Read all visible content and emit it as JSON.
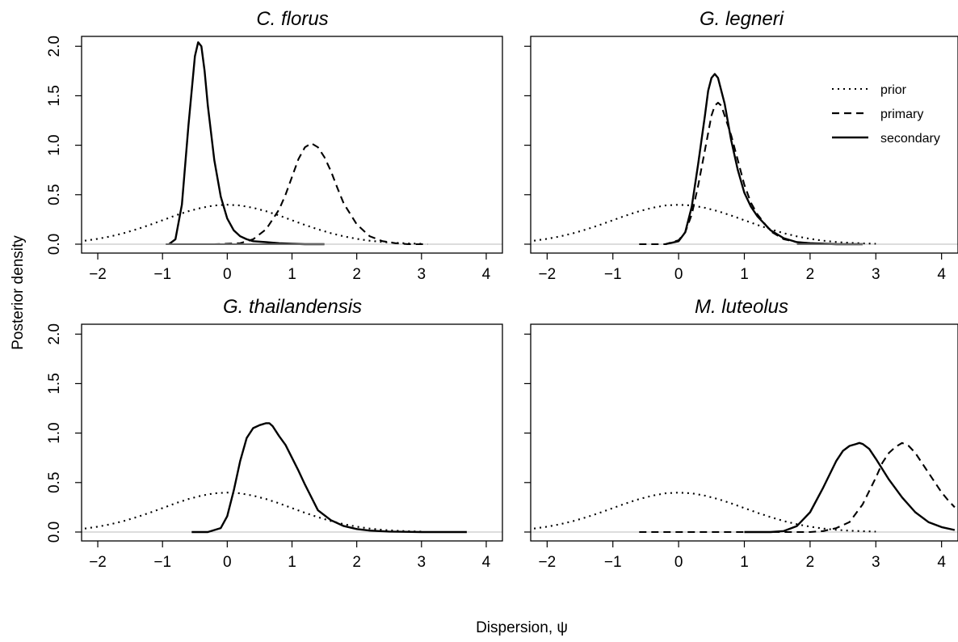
{
  "figure": {
    "xlabel": "Dispersion, ψ",
    "ylabel": "Posterior density"
  },
  "legend": {
    "items": [
      {
        "label": "prior",
        "style": "dotted"
      },
      {
        "label": "primary",
        "style": "dashed"
      },
      {
        "label": "secondary",
        "style": "solid"
      }
    ]
  },
  "chart_data": [
    {
      "type": "line",
      "title": "C. florus",
      "xlim": [
        -2.25,
        4.25
      ],
      "ylim": [
        -0.09,
        2.1
      ],
      "xticks": [
        -2,
        -1,
        0,
        1,
        2,
        3,
        4
      ],
      "xtick_labels": [
        "−2",
        "−1",
        "0",
        "1",
        "2",
        "3",
        "4"
      ],
      "yticks": [
        0.0,
        0.5,
        1.0,
        1.5,
        2.0
      ],
      "ytick_labels": [
        "0.0",
        "0.5",
        "1.0",
        "1.5",
        "2.0"
      ],
      "series": [
        {
          "name": "prior",
          "style": "dotted",
          "color": "#000000",
          "x": [
            -2.2,
            -2.0,
            -1.8,
            -1.6,
            -1.4,
            -1.2,
            -1.0,
            -0.8,
            -0.6,
            -0.4,
            -0.2,
            0.0,
            0.2,
            0.4,
            0.6,
            0.8,
            1.0,
            1.2,
            1.4,
            1.6,
            1.8,
            2.0,
            2.2,
            2.4,
            2.6,
            2.8,
            3.0
          ],
          "y": [
            0.035,
            0.054,
            0.079,
            0.111,
            0.15,
            0.194,
            0.242,
            0.29,
            0.333,
            0.368,
            0.391,
            0.399,
            0.391,
            0.368,
            0.333,
            0.29,
            0.242,
            0.194,
            0.15,
            0.111,
            0.079,
            0.054,
            0.035,
            0.022,
            0.014,
            0.008,
            0.004
          ]
        },
        {
          "name": "primary",
          "style": "dashed",
          "color": "#000000",
          "x": [
            -0.6,
            -0.2,
            0.2,
            0.4,
            0.6,
            0.8,
            0.9,
            1.0,
            1.1,
            1.2,
            1.3,
            1.4,
            1.5,
            1.6,
            1.7,
            1.8,
            2.0,
            2.2,
            2.4,
            2.6,
            2.8,
            3.1
          ],
          "y": [
            0.0,
            0.0,
            0.01,
            0.05,
            0.15,
            0.35,
            0.5,
            0.68,
            0.86,
            0.98,
            1.02,
            0.98,
            0.88,
            0.74,
            0.57,
            0.41,
            0.2,
            0.08,
            0.03,
            0.01,
            0.0,
            0.0
          ]
        },
        {
          "name": "secondary",
          "style": "solid",
          "color": "#000000",
          "x": [
            -0.9,
            -0.8,
            -0.7,
            -0.6,
            -0.5,
            -0.45,
            -0.4,
            -0.35,
            -0.3,
            -0.2,
            -0.1,
            0.0,
            0.1,
            0.2,
            0.3,
            0.4,
            0.6,
            0.8,
            1.0,
            1.2,
            1.5
          ],
          "y": [
            0.0,
            0.05,
            0.4,
            1.2,
            1.9,
            2.04,
            2.0,
            1.75,
            1.4,
            0.85,
            0.48,
            0.26,
            0.14,
            0.08,
            0.05,
            0.03,
            0.02,
            0.01,
            0.005,
            0.0,
            0.0
          ]
        },
        {
          "name": "",
          "style": "solid",
          "color": "#666666",
          "x": [
            -0.95,
            -0.8,
            0.6,
            1.5
          ],
          "y": [
            0.0,
            0.0,
            0.0,
            0.0
          ]
        }
      ]
    },
    {
      "type": "line",
      "title": "G. legneri",
      "xlim": [
        -2.25,
        4.25
      ],
      "ylim": [
        -0.09,
        2.1
      ],
      "xticks": [
        -2,
        -1,
        0,
        1,
        2,
        3,
        4
      ],
      "xtick_labels": [
        "−2",
        "−1",
        "0",
        "1",
        "2",
        "3",
        "4"
      ],
      "yticks": [
        0.0,
        0.5,
        1.0,
        1.5,
        2.0
      ],
      "ytick_labels": [
        "",
        "",
        "",
        "",
        ""
      ],
      "series": [
        {
          "name": "prior",
          "style": "dotted",
          "color": "#000000",
          "x": [
            -2.2,
            -2.0,
            -1.8,
            -1.6,
            -1.4,
            -1.2,
            -1.0,
            -0.8,
            -0.6,
            -0.4,
            -0.2,
            0.0,
            0.2,
            0.4,
            0.6,
            0.8,
            1.0,
            1.2,
            1.4,
            1.6,
            1.8,
            2.0,
            2.2,
            2.4,
            2.6,
            2.8,
            3.0
          ],
          "y": [
            0.035,
            0.054,
            0.079,
            0.111,
            0.15,
            0.194,
            0.242,
            0.29,
            0.333,
            0.368,
            0.391,
            0.399,
            0.391,
            0.368,
            0.333,
            0.29,
            0.242,
            0.194,
            0.15,
            0.111,
            0.079,
            0.054,
            0.035,
            0.022,
            0.014,
            0.008,
            0.004
          ]
        },
        {
          "name": "primary",
          "style": "dashed",
          "color": "#000000",
          "x": [
            -0.6,
            -0.2,
            0.0,
            0.1,
            0.2,
            0.3,
            0.4,
            0.5,
            0.55,
            0.6,
            0.65,
            0.7,
            0.8,
            0.9,
            1.0,
            1.1,
            1.2,
            1.4,
            1.6,
            1.8,
            2.0,
            2.4,
            2.8
          ],
          "y": [
            0.0,
            0.0,
            0.04,
            0.12,
            0.3,
            0.6,
            0.95,
            1.3,
            1.4,
            1.43,
            1.4,
            1.3,
            1.1,
            0.85,
            0.6,
            0.42,
            0.3,
            0.13,
            0.05,
            0.02,
            0.01,
            0.0,
            0.0
          ]
        },
        {
          "name": "secondary",
          "style": "solid",
          "color": "#000000",
          "x": [
            -0.2,
            0.0,
            0.1,
            0.2,
            0.3,
            0.4,
            0.45,
            0.5,
            0.55,
            0.6,
            0.7,
            0.8,
            0.9,
            1.0,
            1.1,
            1.2,
            1.4,
            1.6,
            1.8,
            2.0,
            2.4,
            2.8
          ],
          "y": [
            0.0,
            0.03,
            0.12,
            0.38,
            0.82,
            1.3,
            1.55,
            1.68,
            1.72,
            1.68,
            1.42,
            1.05,
            0.75,
            0.52,
            0.38,
            0.28,
            0.14,
            0.06,
            0.02,
            0.01,
            0.0,
            0.0
          ]
        },
        {
          "name": "",
          "style": "solid",
          "color": "#666666",
          "x": [
            1.8,
            2.8
          ],
          "y": [
            0.0,
            0.0
          ]
        }
      ]
    },
    {
      "type": "line",
      "title": "G. thailandensis",
      "xlim": [
        -2.25,
        4.25
      ],
      "ylim": [
        -0.09,
        2.1
      ],
      "xticks": [
        -2,
        -1,
        0,
        1,
        2,
        3,
        4
      ],
      "xtick_labels": [
        "−2",
        "−1",
        "0",
        "1",
        "2",
        "3",
        "4"
      ],
      "yticks": [
        0.0,
        0.5,
        1.0,
        1.5,
        2.0
      ],
      "ytick_labels": [
        "0.0",
        "0.5",
        "1.0",
        "1.5",
        "2.0"
      ],
      "series": [
        {
          "name": "prior",
          "style": "dotted",
          "color": "#000000",
          "x": [
            -2.2,
            -2.0,
            -1.8,
            -1.6,
            -1.4,
            -1.2,
            -1.0,
            -0.8,
            -0.6,
            -0.4,
            -0.2,
            0.0,
            0.2,
            0.4,
            0.6,
            0.8,
            1.0,
            1.2,
            1.4,
            1.6,
            1.8,
            2.0,
            2.2,
            2.4,
            2.6,
            2.8,
            3.0
          ],
          "y": [
            0.035,
            0.054,
            0.079,
            0.111,
            0.15,
            0.194,
            0.242,
            0.29,
            0.333,
            0.368,
            0.391,
            0.399,
            0.391,
            0.368,
            0.333,
            0.29,
            0.242,
            0.194,
            0.15,
            0.111,
            0.079,
            0.054,
            0.035,
            0.022,
            0.014,
            0.008,
            0.004
          ]
        },
        {
          "name": "secondary",
          "style": "solid",
          "color": "#000000",
          "x": [
            -0.55,
            -0.3,
            -0.1,
            0.0,
            0.1,
            0.2,
            0.3,
            0.4,
            0.5,
            0.6,
            0.65,
            0.7,
            0.8,
            0.9,
            1.0,
            1.1,
            1.2,
            1.4,
            1.6,
            1.8,
            2.0,
            2.2,
            2.5,
            3.0,
            3.7
          ],
          "y": [
            0.0,
            0.0,
            0.04,
            0.16,
            0.42,
            0.72,
            0.95,
            1.05,
            1.08,
            1.1,
            1.1,
            1.07,
            0.97,
            0.88,
            0.75,
            0.62,
            0.48,
            0.22,
            0.12,
            0.06,
            0.03,
            0.015,
            0.005,
            0.0,
            0.0
          ]
        }
      ]
    },
    {
      "type": "line",
      "title": "M. luteolus",
      "xlim": [
        -2.25,
        4.25
      ],
      "ylim": [
        -0.09,
        2.1
      ],
      "xticks": [
        -2,
        -1,
        0,
        1,
        2,
        3,
        4
      ],
      "xtick_labels": [
        "−2",
        "−1",
        "0",
        "1",
        "2",
        "3",
        "4"
      ],
      "yticks": [
        0.0,
        0.5,
        1.0,
        1.5,
        2.0
      ],
      "ytick_labels": [
        "",
        "",
        "",
        "",
        ""
      ],
      "series": [
        {
          "name": "prior",
          "style": "dotted",
          "color": "#000000",
          "x": [
            -2.2,
            -2.0,
            -1.8,
            -1.6,
            -1.4,
            -1.2,
            -1.0,
            -0.8,
            -0.6,
            -0.4,
            -0.2,
            0.0,
            0.2,
            0.4,
            0.6,
            0.8,
            1.0,
            1.2,
            1.4,
            1.6,
            1.8,
            2.0,
            2.2,
            2.4,
            2.6,
            2.8,
            3.0
          ],
          "y": [
            0.035,
            0.054,
            0.079,
            0.111,
            0.15,
            0.194,
            0.242,
            0.29,
            0.333,
            0.368,
            0.391,
            0.399,
            0.391,
            0.368,
            0.333,
            0.29,
            0.242,
            0.194,
            0.15,
            0.111,
            0.079,
            0.054,
            0.035,
            0.022,
            0.014,
            0.008,
            0.004
          ]
        },
        {
          "name": "primary",
          "style": "dashed",
          "color": "#000000",
          "x": [
            -0.6,
            1.5,
            2.0,
            2.2,
            2.4,
            2.6,
            2.8,
            3.0,
            3.1,
            3.2,
            3.3,
            3.4,
            3.5,
            3.6,
            3.7,
            3.8,
            3.9,
            4.0,
            4.1,
            4.2
          ],
          "y": [
            0.0,
            0.0,
            0.0,
            0.01,
            0.04,
            0.1,
            0.28,
            0.55,
            0.7,
            0.8,
            0.86,
            0.9,
            0.87,
            0.8,
            0.7,
            0.6,
            0.5,
            0.4,
            0.32,
            0.25
          ]
        },
        {
          "name": "secondary",
          "style": "solid",
          "color": "#000000",
          "x": [
            1.0,
            1.4,
            1.6,
            1.8,
            2.0,
            2.2,
            2.4,
            2.5,
            2.6,
            2.7,
            2.75,
            2.8,
            2.9,
            3.0,
            3.2,
            3.4,
            3.6,
            3.8,
            4.0,
            4.2
          ],
          "y": [
            0.0,
            0.0,
            0.01,
            0.06,
            0.2,
            0.45,
            0.72,
            0.82,
            0.87,
            0.89,
            0.9,
            0.89,
            0.84,
            0.74,
            0.53,
            0.35,
            0.2,
            0.1,
            0.05,
            0.02
          ]
        }
      ]
    }
  ]
}
